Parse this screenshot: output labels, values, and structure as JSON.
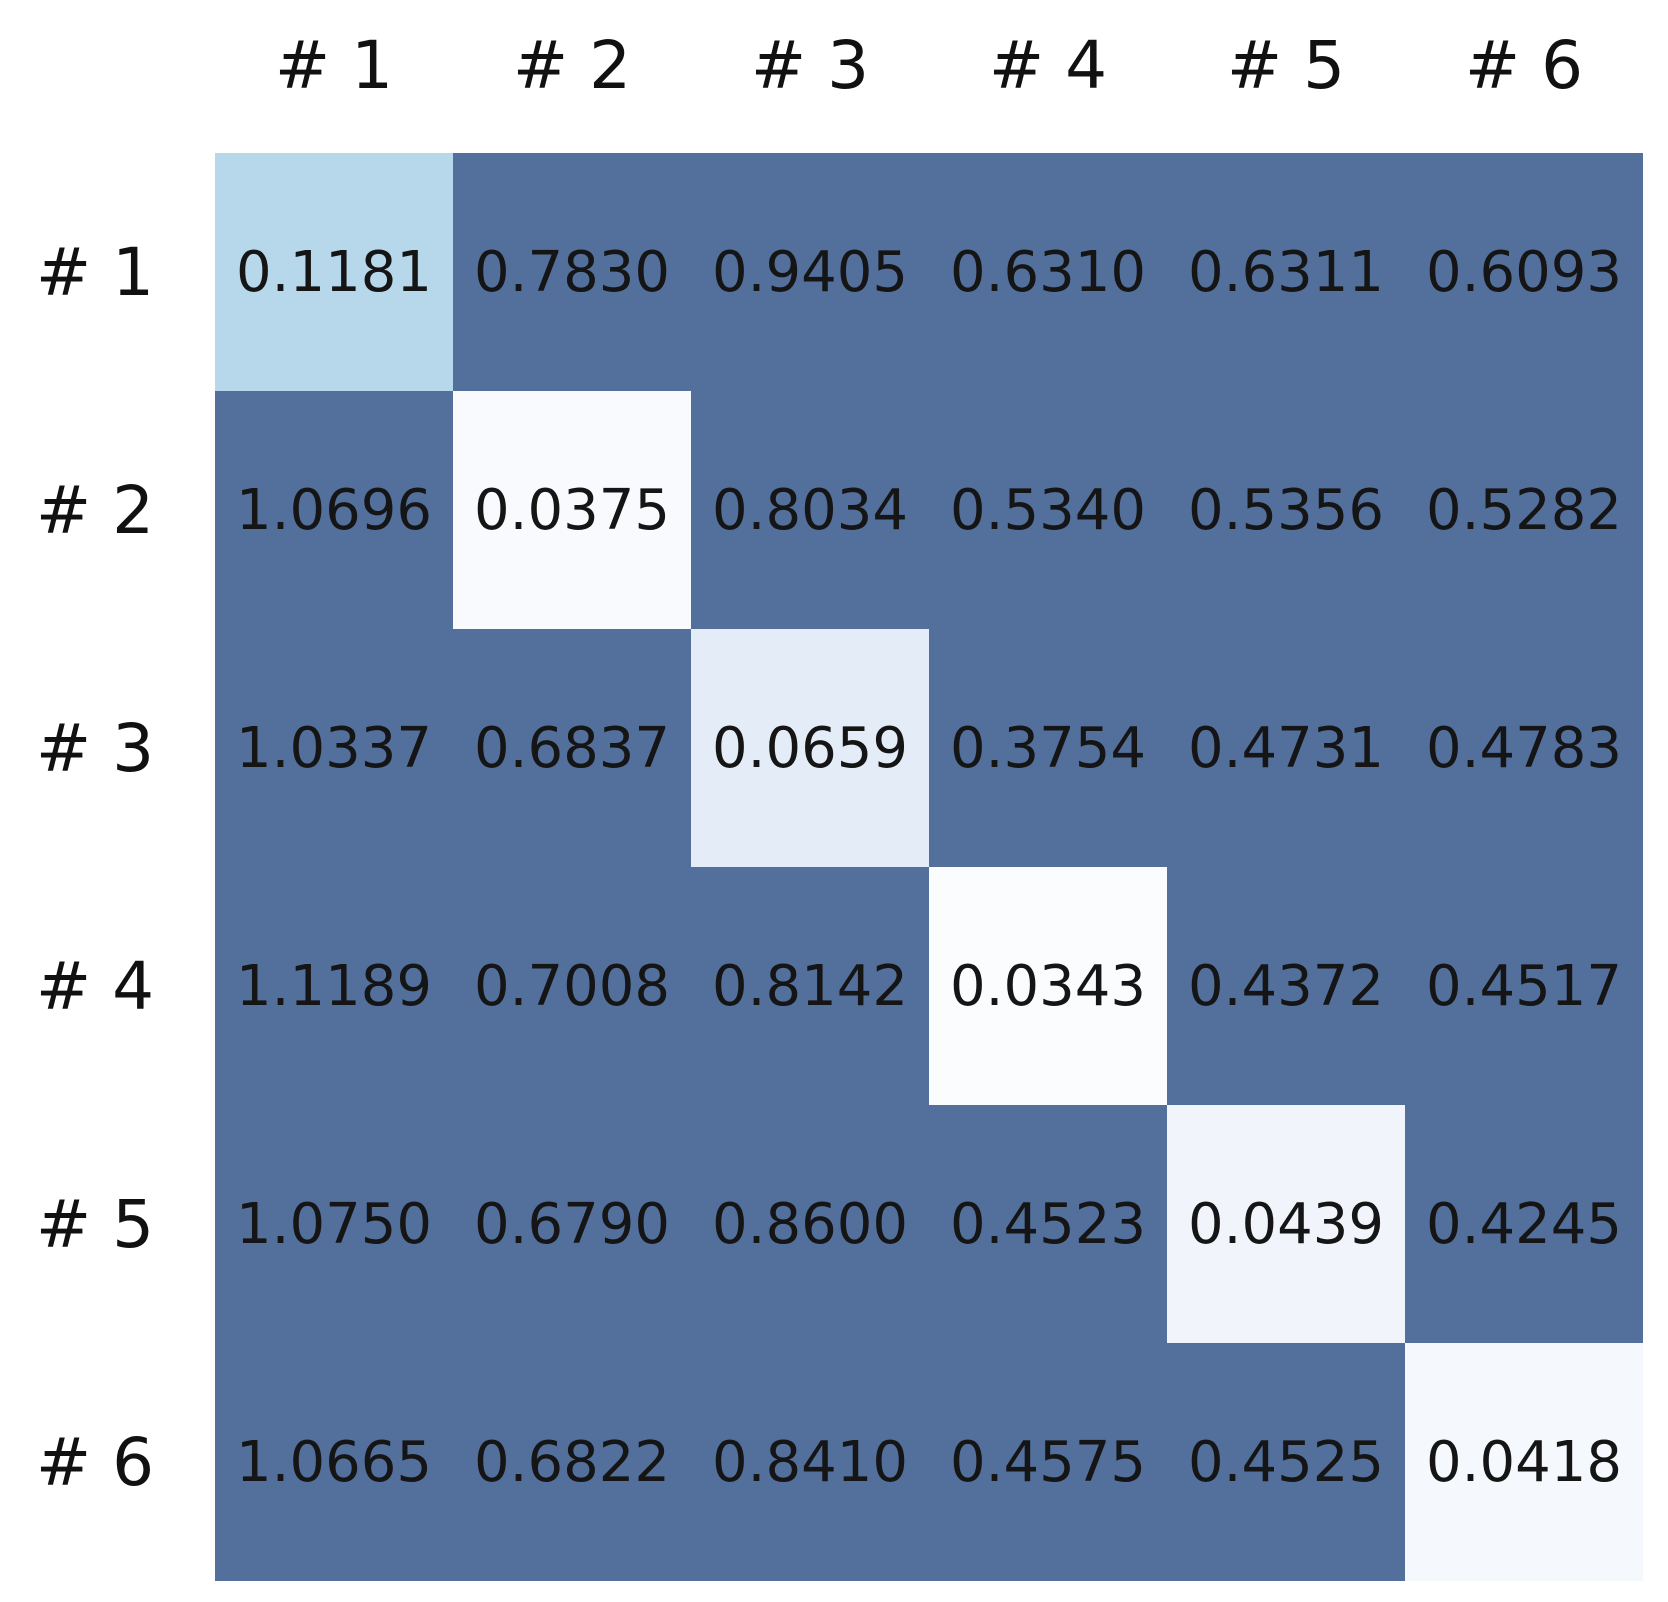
{
  "chart_data": {
    "type": "heatmap",
    "title": "",
    "xlabel": "",
    "ylabel": "",
    "legend": "none",
    "grid": "off",
    "col_labels": [
      "# 1",
      "# 2",
      "# 3",
      "# 4",
      "# 5",
      "# 6"
    ],
    "row_labels": [
      "# 1",
      "# 2",
      "# 3",
      "# 4",
      "# 5",
      "# 6"
    ],
    "values": [
      [
        "0.1181",
        "0.7830",
        "0.9405",
        "0.6310",
        "0.6311",
        "0.6093"
      ],
      [
        "1.0696",
        "0.0375",
        "0.8034",
        "0.5340",
        "0.5356",
        "0.5282"
      ],
      [
        "1.0337",
        "0.6837",
        "0.0659",
        "0.3754",
        "0.4731",
        "0.4783"
      ],
      [
        "1.1189",
        "0.7008",
        "0.8142",
        "0.0343",
        "0.4372",
        "0.4517"
      ],
      [
        "1.0750",
        "0.6790",
        "0.8600",
        "0.4523",
        "0.0439",
        "0.4245"
      ],
      [
        "1.0665",
        "0.6822",
        "0.8410",
        "0.4575",
        "0.4525",
        "0.0418"
      ]
    ],
    "cell_colors": [
      [
        "#b7d7eb",
        "#53709d",
        "#53709d",
        "#53709d",
        "#53709d",
        "#53709d"
      ],
      [
        "#53709d",
        "#f8fafd",
        "#53709d",
        "#53709d",
        "#53709d",
        "#53709d"
      ],
      [
        "#53709d",
        "#53709d",
        "#e4edf7",
        "#53709d",
        "#53709d",
        "#53709d"
      ],
      [
        "#53709d",
        "#53709d",
        "#53709d",
        "#fafcfe",
        "#53709d",
        "#53709d"
      ],
      [
        "#53709d",
        "#53709d",
        "#53709d",
        "#53709d",
        "#f1f5fb",
        "#53709d"
      ],
      [
        "#53709d",
        "#53709d",
        "#53709d",
        "#53709d",
        "#53709d",
        "#f5f9fd"
      ]
    ],
    "colors": {
      "off_diagonal": "#53709d",
      "background": "#ffffff",
      "value_text": "#151515",
      "label_text": "#111111"
    }
  }
}
